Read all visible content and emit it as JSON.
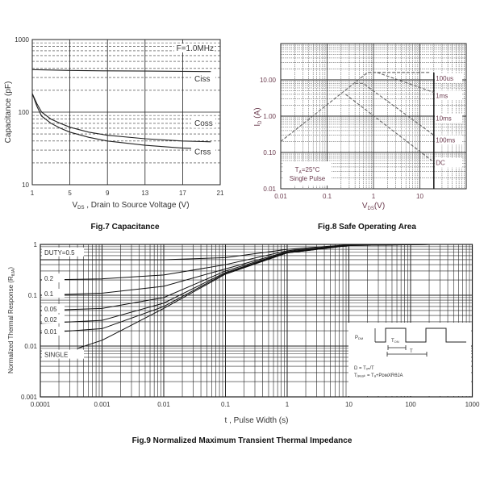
{
  "chart_data": [
    {
      "type": "line",
      "title": "Fig.7 Capacitance",
      "xlabel": {
        "main": "V",
        "sub": "DS",
        "rest": " , Drain to Source Voltage (V)"
      },
      "ylabel": "Capacitance (pF)",
      "xlim": [
        1,
        21
      ],
      "ylim": [
        10,
        1000
      ],
      "yscale": "log",
      "xticks": [
        "1",
        "5",
        "9",
        "13",
        "17",
        "21"
      ],
      "yticks": [
        "10",
        "100",
        "1000"
      ],
      "annotation": "F=1.0MHz",
      "grid": true,
      "series": [
        {
          "name": "Ciss",
          "x": [
            1,
            3,
            5,
            9,
            13,
            17,
            20
          ],
          "y": [
            385,
            380,
            375,
            370,
            368,
            365,
            362
          ]
        },
        {
          "name": "Coss",
          "x": [
            1,
            1.5,
            2,
            3,
            4,
            5,
            7,
            9,
            13,
            17,
            20
          ],
          "y": [
            180,
            130,
            100,
            80,
            70,
            62,
            53,
            48,
            43,
            40,
            39
          ]
        },
        {
          "name": "Crss",
          "x": [
            1,
            1.5,
            2,
            3,
            4,
            5,
            7,
            9,
            13,
            17,
            20
          ],
          "y": [
            180,
            120,
            88,
            70,
            60,
            53,
            45,
            40,
            35,
            32,
            31
          ]
        }
      ]
    },
    {
      "type": "line",
      "title": "Fig.8 Safe Operating Area",
      "xlabel": {
        "main": "V",
        "sub": "DS",
        "rest": "(V)"
      },
      "ylabel": {
        "main": "I",
        "sub": "D",
        "rest": " (A)"
      },
      "xscale": "log",
      "yscale": "log",
      "xlim": [
        0.01,
        100
      ],
      "ylim": [
        0.01,
        100
      ],
      "xticks": [
        "0.01",
        "0.1",
        "1",
        "10"
      ],
      "yticks": [
        "0.01",
        "0.10",
        "1.00",
        "10.00"
      ],
      "annotation": {
        "line1_main": "T",
        "line1_sub": "A",
        "line1_rest": "=25°C",
        "line2": "Single  Pulse"
      },
      "vds_limit": 20,
      "series": [
        {
          "name": "100us",
          "x": [
            0.01,
            0.75,
            17
          ],
          "y": [
            0.2,
            16,
            16
          ]
        },
        {
          "name": "1ms",
          "x": [
            1.2,
            20
          ],
          "y": [
            16,
            4.5
          ]
        },
        {
          "name": "10ms",
          "x": [
            0.4,
            0.6,
            20
          ],
          "y": [
            8,
            8,
            0.3
          ]
        },
        {
          "name": "100ms",
          "x": [
            0.25,
            18
          ],
          "y": [
            4,
            0.06
          ]
        },
        {
          "name": "DC",
          "x": [],
          "y": []
        }
      ],
      "legend_labels": [
        "100us",
        "1ms",
        "10ms",
        "100ms",
        "DC"
      ]
    },
    {
      "type": "line",
      "title": "Fig.9 Normalized Maximum Transient Thermal Impedance",
      "xlabel": "t , Pulse Width (s)",
      "ylabel": {
        "main": "Normalized Thermal Response (R",
        "sub": "θJA",
        "rest": ")"
      },
      "xscale": "log",
      "yscale": "log",
      "xlim": [
        0.0001,
        1000
      ],
      "ylim": [
        0.001,
        1
      ],
      "xticks": [
        "0.0001",
        "0.001",
        "0.01",
        "0.1",
        "1",
        "10",
        "100",
        "1000"
      ],
      "yticks": [
        "0.001",
        "0.01",
        "0.1",
        "1"
      ],
      "series": [
        {
          "name": "DUTY=0.5",
          "x": [
            0.0001,
            0.01,
            0.1,
            1,
            10,
            200
          ],
          "y": [
            0.5,
            0.5,
            0.55,
            0.8,
            0.98,
            1
          ]
        },
        {
          "name": "0.2",
          "x": [
            0.0001,
            0.001,
            0.01,
            0.1,
            1,
            10,
            200
          ],
          "y": [
            0.2,
            0.21,
            0.25,
            0.4,
            0.75,
            0.97,
            1
          ]
        },
        {
          "name": "0.1",
          "x": [
            0.0001,
            0.001,
            0.01,
            0.1,
            1,
            10,
            200
          ],
          "y": [
            0.1,
            0.11,
            0.15,
            0.33,
            0.72,
            0.96,
            1
          ]
        },
        {
          "name": "0.05",
          "x": [
            0.0001,
            0.001,
            0.01,
            0.1,
            1,
            10,
            200
          ],
          "y": [
            0.05,
            0.055,
            0.09,
            0.3,
            0.7,
            0.96,
            1
          ]
        },
        {
          "name": "0.02",
          "x": [
            0.0001,
            0.001,
            0.01,
            0.1,
            1,
            10,
            200
          ],
          "y": [
            0.028,
            0.032,
            0.07,
            0.28,
            0.69,
            0.95,
            1
          ]
        },
        {
          "name": "0.01",
          "x": [
            0.0001,
            0.001,
            0.01,
            0.1,
            1,
            10,
            200
          ],
          "y": [
            0.018,
            0.022,
            0.06,
            0.27,
            0.68,
            0.95,
            1
          ]
        },
        {
          "name": "SINGLE",
          "x": [
            0.0004,
            0.001,
            0.002,
            0.01,
            0.1,
            1,
            10,
            200
          ],
          "y": [
            0.009,
            0.013,
            0.02,
            0.055,
            0.26,
            0.68,
            0.95,
            1
          ]
        }
      ],
      "inset": {
        "pdm_main": "P",
        "pdm_sub": "DM",
        "ton_main": "T",
        "ton_sub": "ON",
        "t_label": "T",
        "eq1": "D = Tₒₙ/T",
        "eq2": "Tⱼₚₑₐₖ = Tₐ+PᴅᴍXRθJA"
      }
    }
  ]
}
